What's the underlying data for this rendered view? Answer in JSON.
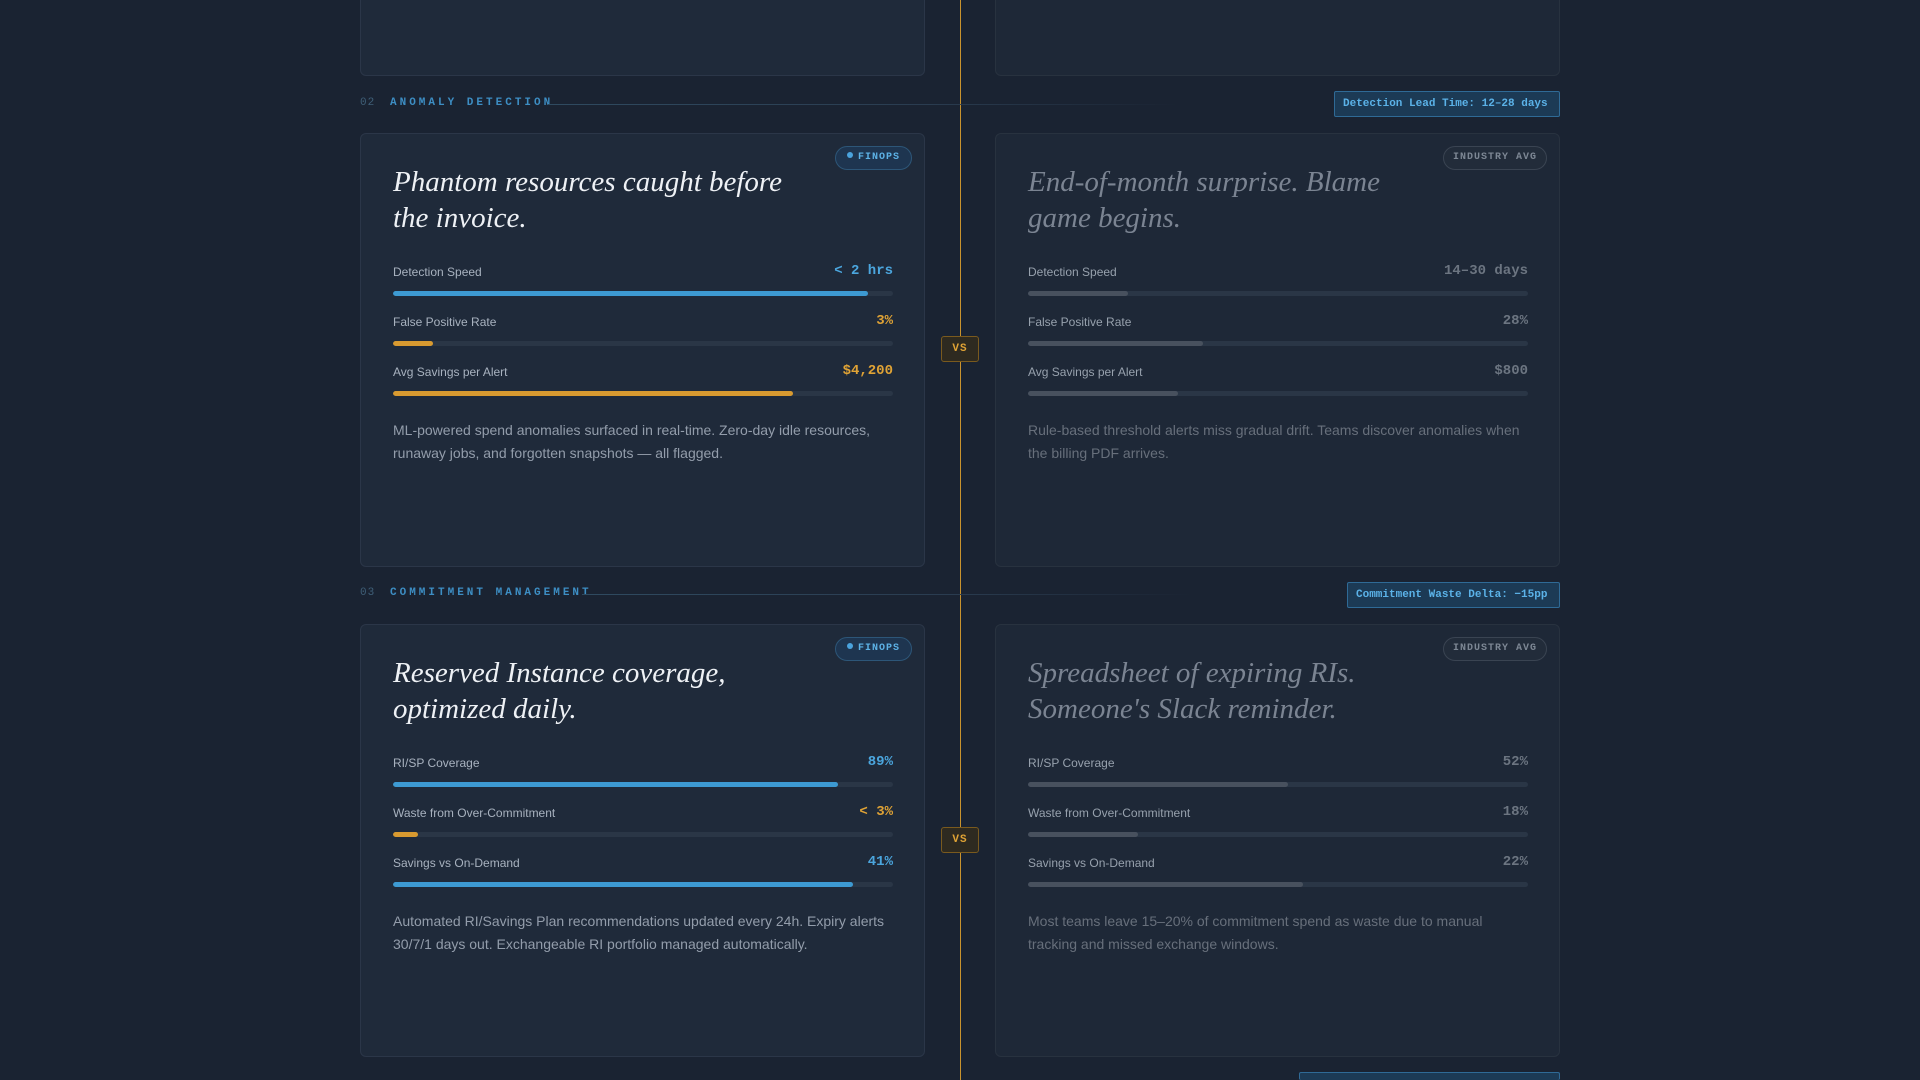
{
  "colors": {
    "background": "#1a2332",
    "accent_blue": "#4ba6de",
    "accent_orange": "#e0a335",
    "divider_gold": "#c9932e"
  },
  "vs_label": "VS",
  "sections": [
    {
      "number": "02",
      "title": "ANOMALY DETECTION",
      "badge": "Detection Lead Time: 12–28 days",
      "left": {
        "tag": "FINOPS",
        "headline_line1": "Phantom resources caught before",
        "headline_line2": "the invoice.",
        "metrics": [
          {
            "label": "Detection Speed",
            "value": "< 2 hrs",
            "fill_percent": 95
          },
          {
            "label": "False Positive Rate",
            "value": "3%",
            "fill_percent": 8
          },
          {
            "label": "Avg Savings per Alert",
            "value": "$4,200",
            "fill_percent": 80
          }
        ],
        "description": "ML-powered spend anomalies surfaced in real-time. Zero-day idle resources, runaway jobs, and forgotten snapshots — all flagged."
      },
      "right": {
        "tag": "INDUSTRY AVG",
        "headline_line1": "End-of-month surprise. Blame",
        "headline_line2": "game begins.",
        "metrics": [
          {
            "label": "Detection Speed",
            "value": "14–30 days",
            "fill_percent": 20
          },
          {
            "label": "False Positive Rate",
            "value": "28%",
            "fill_percent": 35
          },
          {
            "label": "Avg Savings per Alert",
            "value": "$800",
            "fill_percent": 30
          }
        ],
        "description": "Rule-based threshold alerts miss gradual drift. Teams discover anomalies when the billing PDF arrives."
      }
    },
    {
      "number": "03",
      "title": "COMMITMENT MANAGEMENT",
      "badge": "Commitment Waste Delta: −15pp",
      "left": {
        "tag": "FINOPS",
        "headline_line1": "Reserved Instance coverage,",
        "headline_line2": "optimized daily.",
        "metrics": [
          {
            "label": "RI/SP Coverage",
            "value": "89%",
            "fill_percent": 89
          },
          {
            "label": "Waste from Over-Commitment",
            "value": "< 3%",
            "fill_percent": 5
          },
          {
            "label": "Savings vs On-Demand",
            "value": "41%",
            "fill_percent": 92
          }
        ],
        "description": "Automated RI/Savings Plan recommendations updated every 24h. Expiry alerts 30/7/1 days out. Exchangeable RI portfolio managed automatically."
      },
      "right": {
        "tag": "INDUSTRY AVG",
        "headline_line1": "Spreadsheet of expiring RIs.",
        "headline_line2": "Someone's Slack reminder.",
        "metrics": [
          {
            "label": "RI/SP Coverage",
            "value": "52%",
            "fill_percent": 52
          },
          {
            "label": "Waste from Over-Commitment",
            "value": "18%",
            "fill_percent": 22
          },
          {
            "label": "Savings vs On-Demand",
            "value": "22%",
            "fill_percent": 55
          }
        ],
        "description": "Most teams leave 15–20% of commitment spend as waste due to manual tracking and missed exchange windows."
      }
    }
  ]
}
